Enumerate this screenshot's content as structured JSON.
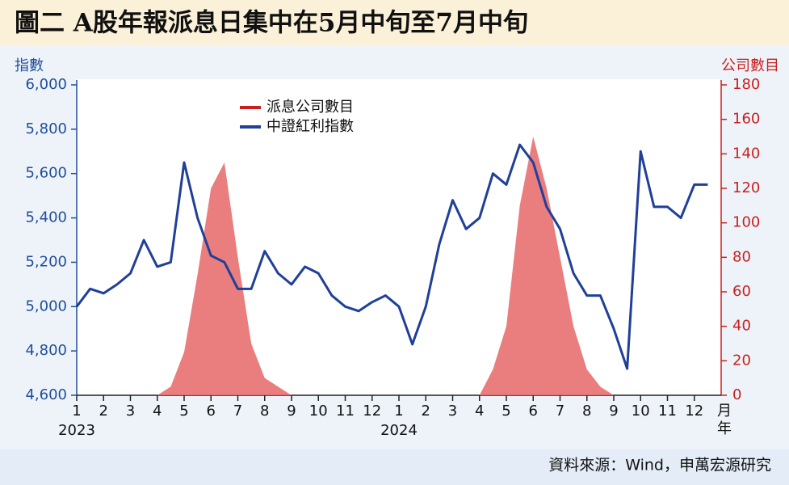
{
  "chart_data": {
    "type": "line",
    "title": "圖二  A股年報派息日集中在5月中旬至7月中旬",
    "y_label": "指數",
    "y2_label": "公司數目",
    "x_label": [
      "月",
      "年"
    ],
    "years": [
      "2023",
      "2024"
    ],
    "source": "資料來源：Wind，申萬宏源研究",
    "categories": [
      "1",
      null,
      "2",
      null,
      "3",
      null,
      "4",
      null,
      "5",
      null,
      "6",
      null,
      "7",
      null,
      "8",
      null,
      "9",
      null,
      "10",
      null,
      "11",
      null,
      "12",
      null,
      "1",
      null,
      "2",
      null,
      "3",
      null,
      "4",
      null,
      "5",
      null,
      "6",
      null,
      "7",
      null,
      "8",
      null,
      "9",
      null,
      "10",
      null,
      "11",
      null,
      "12",
      null
    ],
    "series": [
      {
        "name": "派息公司數目",
        "type": "area",
        "axis": "y2",
        "color": "#e87070",
        "values": [
          0,
          0,
          0,
          0,
          0,
          0,
          0,
          5,
          25,
          70,
          120,
          135,
          80,
          30,
          10,
          5,
          0,
          0,
          0,
          0,
          0,
          0,
          0,
          0,
          0,
          0,
          0,
          0,
          0,
          0,
          0,
          15,
          40,
          110,
          150,
          120,
          80,
          40,
          15,
          5,
          0,
          0,
          0,
          0,
          0,
          0,
          0,
          0
        ]
      },
      {
        "name": "中證紅利指數",
        "type": "line",
        "axis": "y",
        "color": "#1f3f99",
        "values": [
          5000,
          5080,
          5060,
          5100,
          5150,
          5300,
          5180,
          5200,
          5650,
          5400,
          5230,
          5200,
          5080,
          5080,
          5250,
          5150,
          5100,
          5180,
          5150,
          5050,
          5000,
          4980,
          5020,
          5050,
          5000,
          4830,
          5000,
          5280,
          5480,
          5350,
          5400,
          5600,
          5550,
          5730,
          5650,
          5450,
          5350,
          5150,
          5050,
          5050,
          4900,
          4720,
          5700,
          5450,
          5450,
          5400,
          5550,
          5550
        ]
      }
    ],
    "ylim": [
      4600,
      6000
    ],
    "yticks": [
      {
        "value": 4600,
        "label": "4,600"
      },
      {
        "value": 4800,
        "label": "4,800"
      },
      {
        "value": 5000,
        "label": "5,000"
      },
      {
        "value": 5200,
        "label": "5,200"
      },
      {
        "value": 5400,
        "label": "5,400"
      },
      {
        "value": 5600,
        "label": "5,600"
      },
      {
        "value": 5800,
        "label": "5,800"
      },
      {
        "value": 6000,
        "label": "6,000"
      }
    ],
    "y2lim": [
      0,
      180
    ],
    "y2ticks": [
      0,
      20,
      40,
      60,
      80,
      100,
      120,
      140,
      160,
      180
    ]
  }
}
